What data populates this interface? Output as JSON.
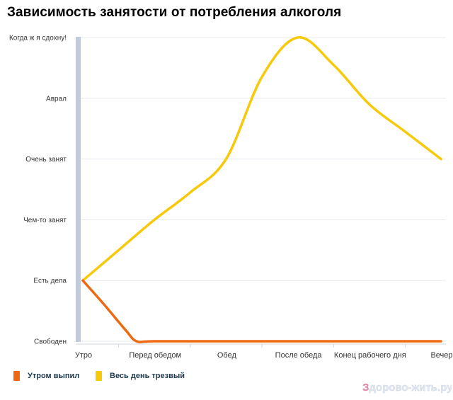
{
  "chart_data": {
    "type": "line",
    "title": "Зависимость занятости от потребления алкоголя",
    "categories": [
      "Утро",
      "Перед обедом",
      "Обед",
      "После обеда",
      "Конец рабочего дня",
      "Вечер"
    ],
    "y_levels": [
      "Свободен",
      "Есть дела",
      "Чем-то занят",
      "Очень занят",
      "Аврал",
      "Когда ж я сдохну!"
    ],
    "ylim": [
      0,
      5
    ],
    "grid": true,
    "legend_position": "bottom-left",
    "series": [
      {
        "name": "Утром выпил",
        "color": "#ee6a12",
        "points": [
          [
            0,
            1
          ],
          [
            0.3,
            0.6
          ],
          [
            0.6,
            0.18
          ],
          [
            0.75,
            0
          ],
          [
            1,
            0
          ],
          [
            2,
            0
          ],
          [
            3,
            0
          ],
          [
            4,
            0
          ],
          [
            5,
            0
          ]
        ]
      },
      {
        "name": "Весь день трезвый",
        "color": "#f6c909",
        "points": [
          [
            0,
            1
          ],
          [
            0.5,
            1.5
          ],
          [
            1,
            2
          ],
          [
            1.5,
            2.45
          ],
          [
            2,
            3
          ],
          [
            2.5,
            4.35
          ],
          [
            3,
            5
          ],
          [
            3.5,
            4.55
          ],
          [
            4,
            3.9
          ],
          [
            4.5,
            3.45
          ],
          [
            5,
            3
          ]
        ]
      }
    ]
  },
  "legend": [
    {
      "label": "Утром выпил",
      "color": "#ee6a12"
    },
    {
      "label": "Весь день трезвый",
      "color": "#f6c909"
    }
  ],
  "watermark": {
    "text": "Здорово-жить.ру"
  }
}
